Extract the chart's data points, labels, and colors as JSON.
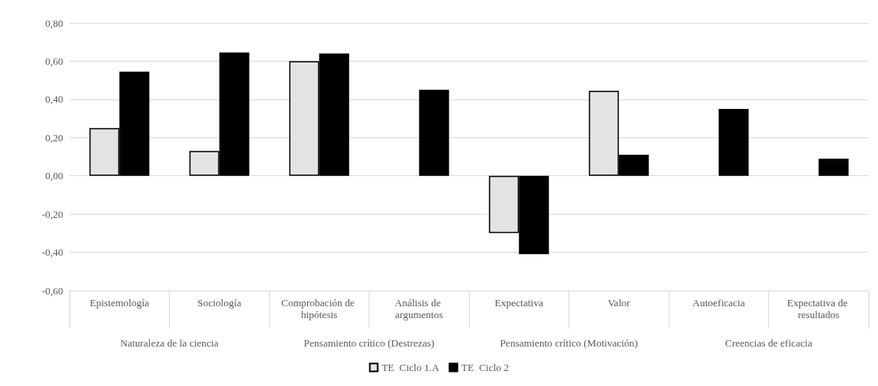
{
  "chart_data": {
    "type": "bar",
    "categories": [
      "Epistemología",
      "Sociología",
      "Comprobación de hipótesis",
      "Análisis de argumentos",
      "Expectativa",
      "Valor",
      "Autoeficacia",
      "Expectativa de resultados"
    ],
    "series": [
      {
        "name": "TE  Ciclo 1.A",
        "color": "#e3e3e3",
        "values": [
          0.25,
          0.13,
          0.6,
          null,
          -0.3,
          0.445,
          null,
          null
        ]
      },
      {
        "name": "TE  Ciclo 2",
        "color": "#000000",
        "values": [
          0.545,
          0.645,
          0.64,
          0.45,
          -0.41,
          0.11,
          0.35,
          0.09
        ]
      }
    ],
    "annotations": [
      "Naturaleza de la ciencia",
      "Pensamiento crítico (Destrezas)",
      "Pensamiento crítico (Motivación)",
      "Creencias de eficacia"
    ],
    "ylim": [
      -0.6,
      0.8
    ],
    "yticks": [
      {
        "value": -0.6,
        "label": "-0,60"
      },
      {
        "value": -0.4,
        "label": "-0,40"
      },
      {
        "value": -0.2,
        "label": "-0,20"
      },
      {
        "value": 0,
        "label": "0,00"
      },
      {
        "value": 0.2,
        "label": "0,20"
      },
      {
        "value": 0.4,
        "label": "0,40"
      },
      {
        "value": 0.6,
        "label": "0,60"
      },
      {
        "value": 0.8,
        "label": "0,80"
      }
    ],
    "grid": "y",
    "legend": "bottom"
  }
}
